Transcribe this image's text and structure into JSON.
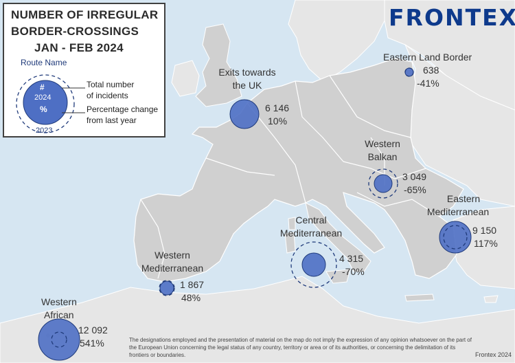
{
  "title": {
    "line1": "NUMBER OF IRREGULAR",
    "line2": "BORDER-CROSSINGS",
    "line3": "JAN - FEB 2024"
  },
  "brand": "FRONTEX",
  "legend": {
    "route_name": "Route Name",
    "symbol_hash": "#",
    "symbol_year": "2024",
    "symbol_pct": "%",
    "prev_year": "2023",
    "total_label_1": "Total number",
    "total_label_2": "of incidents",
    "pct_label_1": "Percentage change",
    "pct_label_2": "from last year"
  },
  "routes": [
    {
      "name_1": "Exits towards",
      "name_2": "the UK",
      "count": "6 146",
      "change": "10%"
    },
    {
      "name_1": "Eastern Land Border",
      "name_2": "",
      "count": "638",
      "change": "-41%"
    },
    {
      "name_1": "Western",
      "name_2": "Balkan",
      "count": "3 049",
      "change": "-65%"
    },
    {
      "name_1": "Eastern",
      "name_2": "Mediterranean",
      "count": "9 150",
      "change": "117%"
    },
    {
      "name_1": "Central",
      "name_2": "Mediterranean",
      "count": "4 315",
      "change": "-70%"
    },
    {
      "name_1": "Western",
      "name_2": "Mediterranean",
      "count": "1 867",
      "change": "48%"
    },
    {
      "name_1": "Western",
      "name_2": "African",
      "count": "12 092",
      "change": "541%"
    }
  ],
  "disclaimer": "The designations employed and the presentation of material on the map do not imply the expression of any opinion whatsoever on the part of the European Union concerning the legal status of any country, territory or area or of its authorities, or concerning the delimitation of its frontiers or boundaries.",
  "credit": "Frontex 2024",
  "colors": {
    "sea": "#d6e6f2",
    "land_focus": "#d0d0d0",
    "land_other": "#e6e6e6",
    "bubble_fill": "#4e6fc4",
    "bubble_stroke": "#1f3a7a",
    "brand": "#0e3a8c"
  }
}
